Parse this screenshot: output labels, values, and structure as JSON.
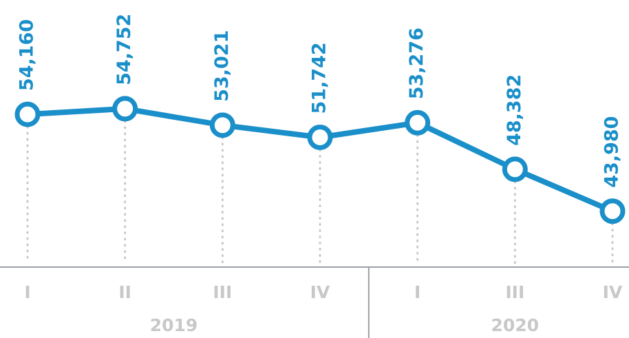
{
  "chart_data": {
    "type": "line",
    "categories": [
      "I",
      "II",
      "III",
      "IV",
      "I",
      "III",
      "IV"
    ],
    "values": [
      54160,
      54752,
      53021,
      51742,
      53276,
      48382,
      43980
    ],
    "value_labels": [
      "54,160",
      "54,752",
      "53,021",
      "51,742",
      "53,276",
      "48,382",
      "43,980"
    ],
    "groups": [
      {
        "label": "2019",
        "span": 4
      },
      {
        "label": "2020",
        "span": 3
      }
    ],
    "color": "#1a8fc9",
    "ylim": [
      38100,
      66180
    ]
  }
}
